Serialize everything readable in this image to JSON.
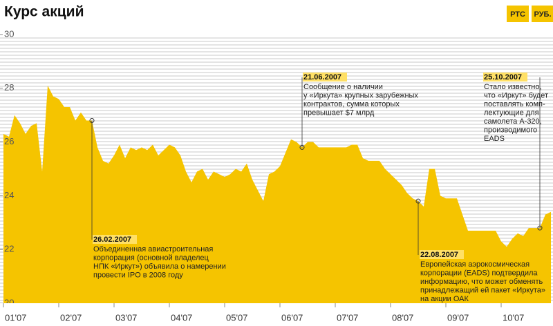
{
  "chart_data": {
    "type": "area",
    "title": "Курс акций",
    "buttons": [
      "РТС",
      "РУБ."
    ],
    "categories": [
      "01'07",
      null,
      null,
      null,
      null,
      null,
      null,
      null,
      null,
      null,
      "02'07",
      null,
      null,
      null,
      null,
      null,
      null,
      null,
      null,
      null,
      "03'07",
      null,
      null,
      null,
      null,
      null,
      null,
      null,
      null,
      null,
      "04'07",
      null,
      null,
      null,
      null,
      null,
      null,
      null,
      null,
      null,
      "05'07",
      null,
      null,
      null,
      null,
      null,
      null,
      null,
      null,
      null,
      "06'07",
      null,
      null,
      null,
      null,
      null,
      null,
      null,
      null,
      null,
      "07'07",
      null,
      null,
      null,
      null,
      null,
      null,
      null,
      null,
      null,
      "08'07",
      null,
      null,
      null,
      null,
      null,
      null,
      null,
      null,
      null,
      "09'07",
      null,
      null,
      null,
      null,
      null,
      null,
      null,
      null,
      null,
      "10'07",
      null,
      null,
      null,
      null,
      null,
      null,
      null,
      null,
      null
    ],
    "values": [
      26.3,
      26.2,
      27.0,
      26.7,
      26.3,
      26.6,
      26.7,
      24.9,
      28.1,
      27.7,
      27.6,
      27.3,
      27.3,
      26.8,
      27.1,
      26.8,
      26.8,
      25.8,
      25.3,
      25.2,
      25.5,
      25.9,
      25.4,
      25.8,
      25.7,
      25.8,
      25.7,
      25.9,
      25.5,
      25.7,
      25.9,
      25.8,
      25.5,
      24.9,
      24.5,
      24.9,
      25.0,
      24.6,
      24.9,
      24.8,
      24.7,
      24.8,
      25.0,
      24.9,
      25.2,
      24.6,
      24.2,
      23.8,
      24.8,
      24.9,
      25.1,
      25.6,
      26.1,
      26.0,
      25.8,
      26.0,
      26.0,
      25.8,
      25.8,
      25.8,
      25.8,
      25.8,
      25.8,
      25.9,
      25.9,
      25.4,
      25.3,
      25.3,
      25.3,
      25.0,
      24.8,
      24.6,
      24.4,
      24.1,
      23.9,
      23.8,
      23.6,
      25.0,
      25.0,
      24.0,
      23.9,
      23.9,
      23.9,
      23.3,
      22.7,
      22.7,
      22.7,
      22.7,
      22.7,
      22.7,
      22.3,
      22.1,
      22.4,
      22.6,
      22.5,
      22.8,
      22.8,
      22.8,
      23.3,
      23.4
    ],
    "color": "#f5c400",
    "ylim": [
      20,
      30
    ],
    "yticks": [
      20,
      22,
      24,
      26,
      28,
      30
    ],
    "annotations": [
      {
        "date": "26.02.2007",
        "text": [
          "Объединенная авиастроительная",
          "корпорация (основной владелец",
          "НПК «Иркут») объявила о намерении",
          "провести IPO в 2008 году"
        ]
      },
      {
        "date": "21.06.2007",
        "text": [
          "Сообщение о наличии",
          "у «Иркута» крупных зарубежных",
          "контрактов, сумма которых",
          "превышает $7 млрд"
        ]
      },
      {
        "date": "22.08.2007",
        "text": [
          "Европейская аэрокосмическая",
          "корпорации (EADS) подтвердила",
          "информацию, что может обменять",
          "принадлежащий ей пакет «Иркута»",
          "на акции ОАК"
        ]
      },
      {
        "date": "25.10.2007",
        "text": [
          "Стало известно,",
          "что «Иркут» будет",
          "поставлять комп-",
          "лектующие для",
          "самолета А-320,",
          "производимого",
          "EADS"
        ]
      }
    ]
  }
}
